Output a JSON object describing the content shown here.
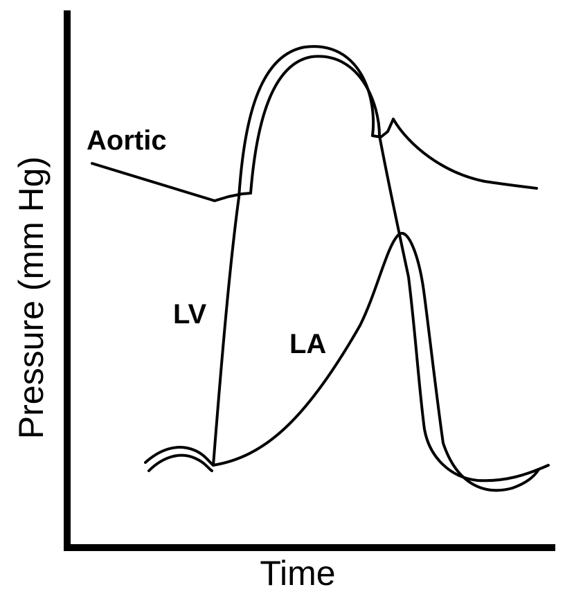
{
  "axes": {
    "x_title": "Time",
    "y_title": "Pressure (mm Hg)"
  },
  "curves": {
    "aortic": "Aortic",
    "lv": "LV",
    "la": "LA"
  },
  "colors": {
    "line": "#000000",
    "background": "#ffffff"
  }
}
